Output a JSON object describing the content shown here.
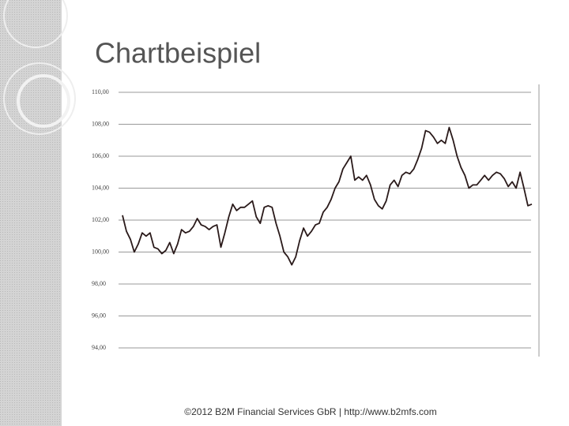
{
  "slide_title": "Chartbeispiel",
  "footer": "©2012 B2M Financial Services GbR | http://www.b2mfs.com",
  "chart_data": {
    "type": "line",
    "series": [
      {
        "color": "#2a1a1a",
        "values": [
          102.3,
          101.3,
          100.8,
          100.0,
          100.5,
          101.2,
          101.0,
          101.2,
          100.3,
          100.2,
          99.9,
          100.1,
          100.6,
          99.9,
          100.5,
          101.4,
          101.2,
          101.3,
          101.6,
          102.1,
          101.7,
          101.6,
          101.4,
          101.6,
          101.7,
          100.3,
          101.2,
          102.2,
          103.0,
          102.6,
          102.8,
          102.8,
          103.0,
          103.2,
          102.2,
          101.8,
          102.8,
          102.9,
          102.8,
          101.8,
          101.0,
          100.0,
          99.7,
          99.2,
          99.7,
          100.7,
          101.5,
          101.0,
          101.3,
          101.7,
          101.8,
          102.5,
          102.8,
          103.3,
          104.0,
          104.4,
          105.2,
          105.6,
          106.0,
          104.5,
          104.7,
          104.5,
          104.8,
          104.2,
          103.3,
          102.9,
          102.7,
          103.2,
          104.2,
          104.5,
          104.1,
          104.8,
          105.0,
          104.9,
          105.2,
          105.8,
          106.5,
          107.6,
          107.5,
          107.2,
          106.8,
          107.0,
          106.8,
          107.8,
          107.0,
          106.0,
          105.3,
          104.8,
          104.0,
          104.2,
          104.2,
          104.5,
          104.8,
          104.5,
          104.8,
          105.0,
          104.9,
          104.6,
          104.1,
          104.4,
          104.0,
          105.0,
          104.0,
          102.9,
          103.0
        ]
      }
    ],
    "ylim": [
      94,
      110
    ],
    "yticks": [
      {
        "value": 94,
        "label": "94,00"
      },
      {
        "value": 96,
        "label": "96,00"
      },
      {
        "value": 98,
        "label": "98,00"
      },
      {
        "value": 100,
        "label": "100,00"
      },
      {
        "value": 102,
        "label": "102,00"
      },
      {
        "value": 104,
        "label": "104,00"
      },
      {
        "value": 106,
        "label": "106,00"
      },
      {
        "value": 108,
        "label": "108,00"
      },
      {
        "value": 110,
        "label": "110,00"
      }
    ],
    "grid": true
  }
}
